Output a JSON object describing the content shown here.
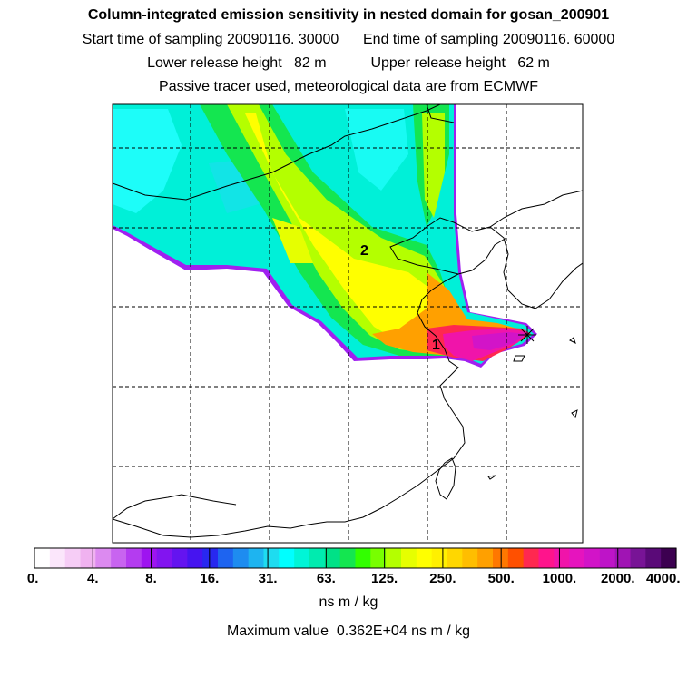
{
  "header": {
    "title": "Column-integrated emission sensitivity in nested domain for gosan_200901",
    "sampling": "Start time of sampling 20090116. 30000      End time of sampling 20090116. 60000",
    "release": "Lower release height   82 m           Upper release height   62 m",
    "tracer": "Passive tracer used, meteorological data are from ECMWF"
  },
  "map": {
    "region_labels": [
      "2",
      "1"
    ],
    "receptor_marker": "receptor-star"
  },
  "colorbar": {
    "tick_labels": [
      "0.",
      "4.",
      "8.",
      "16.",
      "31.",
      "63.",
      "125.",
      "250.",
      "500.",
      "1000.",
      "2000.",
      "4000."
    ],
    "colors": [
      "#ffffff",
      "#fbe6fb",
      "#f6cdf6",
      "#f0b2f0",
      "#dc8af0",
      "#c864f0",
      "#b43cf0",
      "#9e14f0",
      "#8214f0",
      "#6414f0",
      "#4614f0",
      "#2828f0",
      "#1e64f0",
      "#1e8cf0",
      "#1eb4f0",
      "#1edcf0",
      "#00ffff",
      "#00f5d7",
      "#00ebaf",
      "#00e187",
      "#14e650",
      "#32ff00",
      "#78ff00",
      "#b4ff00",
      "#e6ff00",
      "#ffff00",
      "#fff000",
      "#ffd700",
      "#ffbe00",
      "#ffa000",
      "#ff7800",
      "#ff5000",
      "#ff2850",
      "#ff148c",
      "#f014aa",
      "#e614be",
      "#d214c8",
      "#be14c8",
      "#a014b4",
      "#781496",
      "#5a0a78",
      "#3c0050"
    ],
    "units": "ns m / kg"
  },
  "footer": {
    "max_value": "Maximum value  0.362E+04 ns m / kg"
  }
}
